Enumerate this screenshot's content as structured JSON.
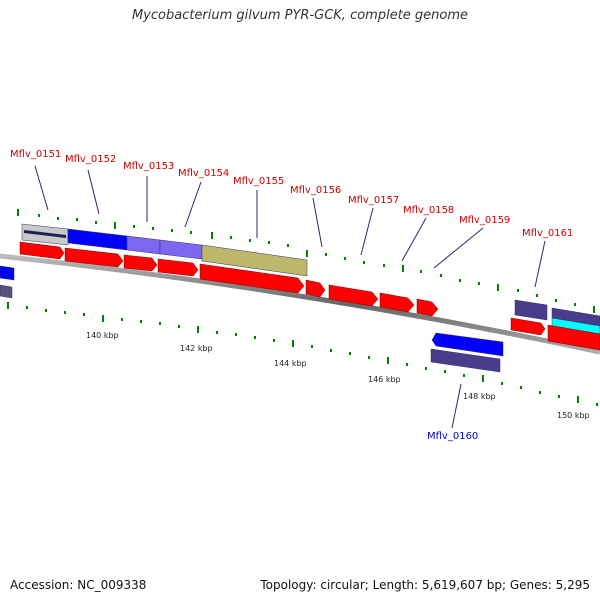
{
  "title": "Mycobacterium gilvum PYR-GCK, complete genome",
  "footer": {
    "accession": "Accession: NC_009338",
    "summary": "Topology: circular; Length: 5,619,607 bp; Genes: 5,295"
  },
  "scale_labels": [
    "140 kbp",
    "142 kbp",
    "144 kbp",
    "146 kbp",
    "148 kbp",
    "150 kbp"
  ],
  "gene_labels": [
    {
      "name": "Mflv_0151",
      "color": "#cc0000"
    },
    {
      "name": "Mflv_0152",
      "color": "#cc0000"
    },
    {
      "name": "Mflv_0153",
      "color": "#cc0000"
    },
    {
      "name": "Mflv_0154",
      "color": "#cc0000"
    },
    {
      "name": "Mflv_0155",
      "color": "#cc0000"
    },
    {
      "name": "Mflv_0156",
      "color": "#cc0000"
    },
    {
      "name": "Mflv_0157",
      "color": "#cc0000"
    },
    {
      "name": "Mflv_0158",
      "color": "#cc0000"
    },
    {
      "name": "Mflv_0159",
      "color": "#cc0000"
    },
    {
      "name": "Mflv_0160",
      "color": "#0000cc"
    },
    {
      "name": "Mflv_0161",
      "color": "#cc0000"
    }
  ],
  "colors": {
    "gene": "#ff0000",
    "cog_blue": "#0000ff",
    "cog_lavender": "#7b68ee",
    "cog_slate": "#483d8b",
    "cog_khaki": "#bdb76b",
    "cog_cyan": "#00ffff",
    "cog_grey": "#c0c0c0",
    "backbone": "#888888",
    "tick": "#008000"
  }
}
